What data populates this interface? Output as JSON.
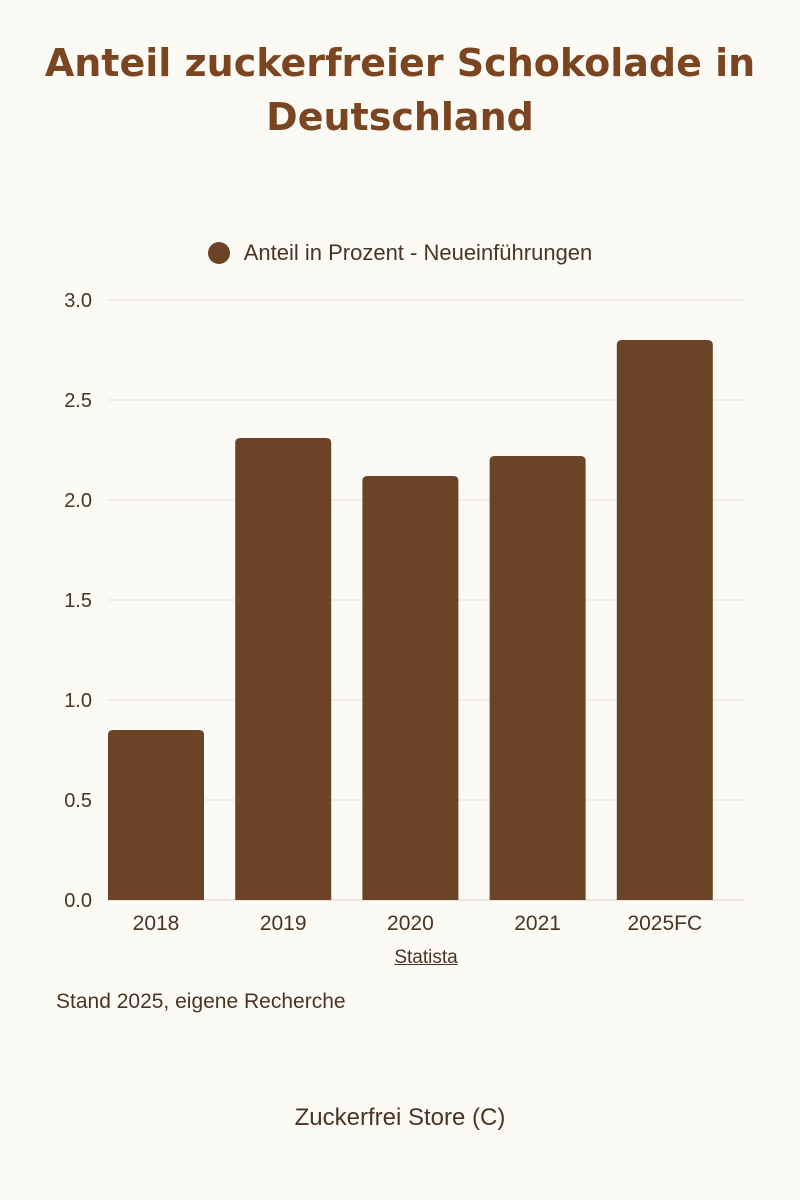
{
  "chart_data": {
    "type": "bar",
    "title": "Anteil zuckerfreier Schokolade in Deutschland",
    "categories": [
      "2018",
      "2019",
      "2020",
      "2021",
      "2025FC"
    ],
    "series": [
      {
        "name": "Anteil in Prozent - Neueinführungen",
        "values": [
          0.85,
          2.31,
          2.12,
          2.22,
          2.8
        ]
      }
    ],
    "ylim": [
      0,
      3
    ],
    "yticks": [
      "0.0",
      "0.5",
      "1.0",
      "1.5",
      "2.0",
      "2.5",
      "3.0"
    ],
    "grid": true,
    "legend_position": "top-center",
    "bar_color": "#6b4427"
  },
  "source_link": "Statista",
  "note": "Stand 2025, eigene Recherche",
  "footer": "Zuckerfrei Store (C)"
}
